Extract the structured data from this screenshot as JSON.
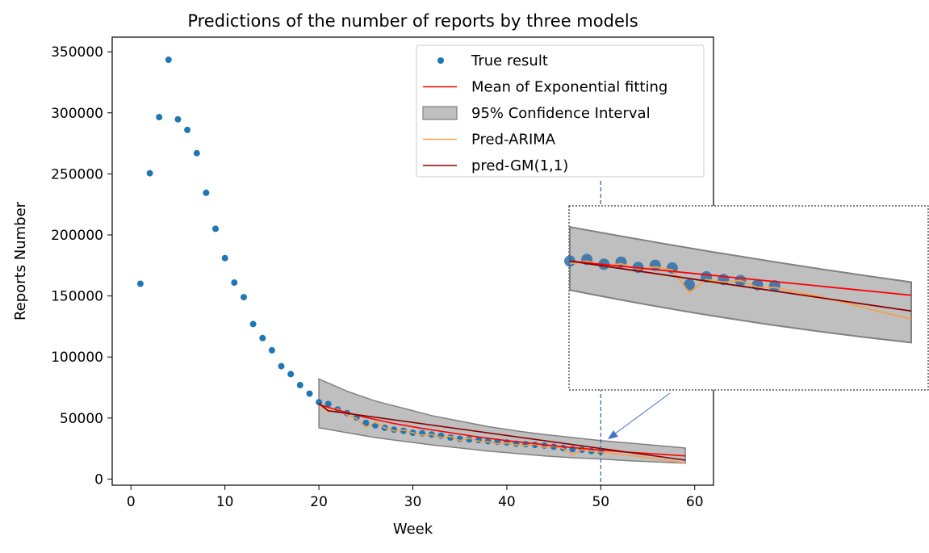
{
  "chart_data": {
    "type": "scatter",
    "title": "Predictions of the number of reports by three models",
    "xlabel": "Week",
    "ylabel": "Reports Number",
    "xlim": [
      -2,
      62
    ],
    "ylim": [
      -5000,
      362000
    ],
    "xticks": [
      0,
      10,
      20,
      30,
      40,
      50,
      60
    ],
    "xtick_labels": [
      "0",
      "10",
      "20",
      "30",
      "40",
      "50",
      "60"
    ],
    "yticks": [
      0,
      50000,
      100000,
      150000,
      200000,
      250000,
      300000,
      350000
    ],
    "ytick_labels": [
      "0",
      "50000",
      "100000",
      "150000",
      "200000",
      "250000",
      "300000",
      "350000"
    ],
    "grid": false,
    "legend_position": "top-right",
    "colors": {
      "true_result": "#1f77b4",
      "exp_mean": "#ff0000",
      "ci_fill": "#808080",
      "arima": "#f5a04a",
      "gm": "#8b0000",
      "marker_line": "#2e5fa8",
      "arrow": "#4472c4"
    },
    "series": [
      {
        "name": "True result",
        "kind": "scatter",
        "x": [
          1,
          2,
          3,
          4,
          5,
          6,
          7,
          8,
          9,
          10,
          11,
          12,
          13,
          14,
          15,
          16,
          17,
          18,
          19,
          20,
          21,
          22,
          23,
          24,
          25,
          26,
          27,
          28,
          29,
          30,
          31,
          32,
          33,
          34,
          35,
          36,
          37,
          38,
          39,
          40,
          41,
          42,
          43,
          44,
          45,
          46,
          47,
          48,
          49,
          50
        ],
        "y": [
          160000,
          250500,
          296500,
          343500,
          294700,
          286000,
          267000,
          234500,
          205000,
          181000,
          161000,
          149000,
          127000,
          115500,
          105500,
          92500,
          86000,
          77000,
          70000,
          63000,
          61500,
          57000,
          54000,
          50500,
          46000,
          44000,
          42000,
          40500,
          39500,
          38000,
          37500,
          36500,
          35500,
          34000,
          33000,
          32500,
          32000,
          31000,
          30500,
          30000,
          29000,
          28500,
          28000,
          27500,
          26500,
          25500,
          24500,
          24000,
          23000,
          22500
        ]
      },
      {
        "name": "Mean of Exponential fitting",
        "kind": "line",
        "x": [
          20,
          22,
          25,
          28,
          31,
          34,
          37,
          40,
          43,
          46,
          49,
          52,
          55,
          59
        ],
        "y": [
          61000,
          56500,
          50500,
          45500,
          41500,
          38000,
          34500,
          31500,
          29000,
          26500,
          24500,
          22500,
          21000,
          19000
        ]
      },
      {
        "name": "95% Confidence Interval",
        "kind": "band",
        "x": [
          20,
          23,
          26,
          29,
          32,
          35,
          38,
          41,
          44,
          47,
          50,
          53,
          56,
          59
        ],
        "lower": [
          42000,
          38000,
          34000,
          31000,
          28000,
          25500,
          23000,
          21000,
          19000,
          17500,
          16500,
          15000,
          14000,
          13000
        ],
        "upper": [
          82000,
          72000,
          64000,
          58000,
          52000,
          47500,
          43000,
          39500,
          36500,
          34000,
          31500,
          29500,
          27500,
          25500
        ]
      },
      {
        "name": "Pred-ARIMA",
        "kind": "line",
        "x": [
          20,
          21,
          22,
          23,
          24,
          25,
          26,
          27,
          28,
          29,
          30,
          31,
          32,
          33,
          34,
          35,
          36,
          37,
          38,
          39,
          40,
          41,
          42,
          43,
          44,
          45,
          46,
          47,
          48,
          49,
          50,
          53,
          56,
          59
        ],
        "y": [
          61000,
          55000,
          57500,
          52500,
          49500,
          42500,
          46500,
          42000,
          39500,
          40000,
          38000,
          36000,
          36500,
          34000,
          35000,
          31500,
          33500,
          31000,
          30500,
          29000,
          29500,
          28000,
          27500,
          28500,
          26000,
          27000,
          25000,
          20000,
          24000,
          23000,
          22000,
          19500,
          16500,
          13000
        ]
      },
      {
        "name": "pred-GM(1,1)",
        "kind": "line",
        "x": [
          20,
          21,
          59
        ],
        "y": [
          62000,
          56000,
          15500
        ]
      }
    ],
    "marker_line_x": 50,
    "inset": {
      "kind": "zoom",
      "points_x": [
        42,
        43,
        44,
        45,
        46,
        47,
        48,
        49,
        50,
        51,
        52,
        53,
        54,
        55,
        56,
        57,
        58,
        59,
        60,
        61,
        62
      ],
      "points_y": [
        28500,
        27500,
        27000,
        25500,
        26500,
        24500,
        24000,
        23000,
        22500,
        23500,
        22000,
        22000,
        21000,
        21500,
        21000,
        20500,
        20000,
        19500,
        19000,
        18500,
        18000
      ]
    }
  }
}
